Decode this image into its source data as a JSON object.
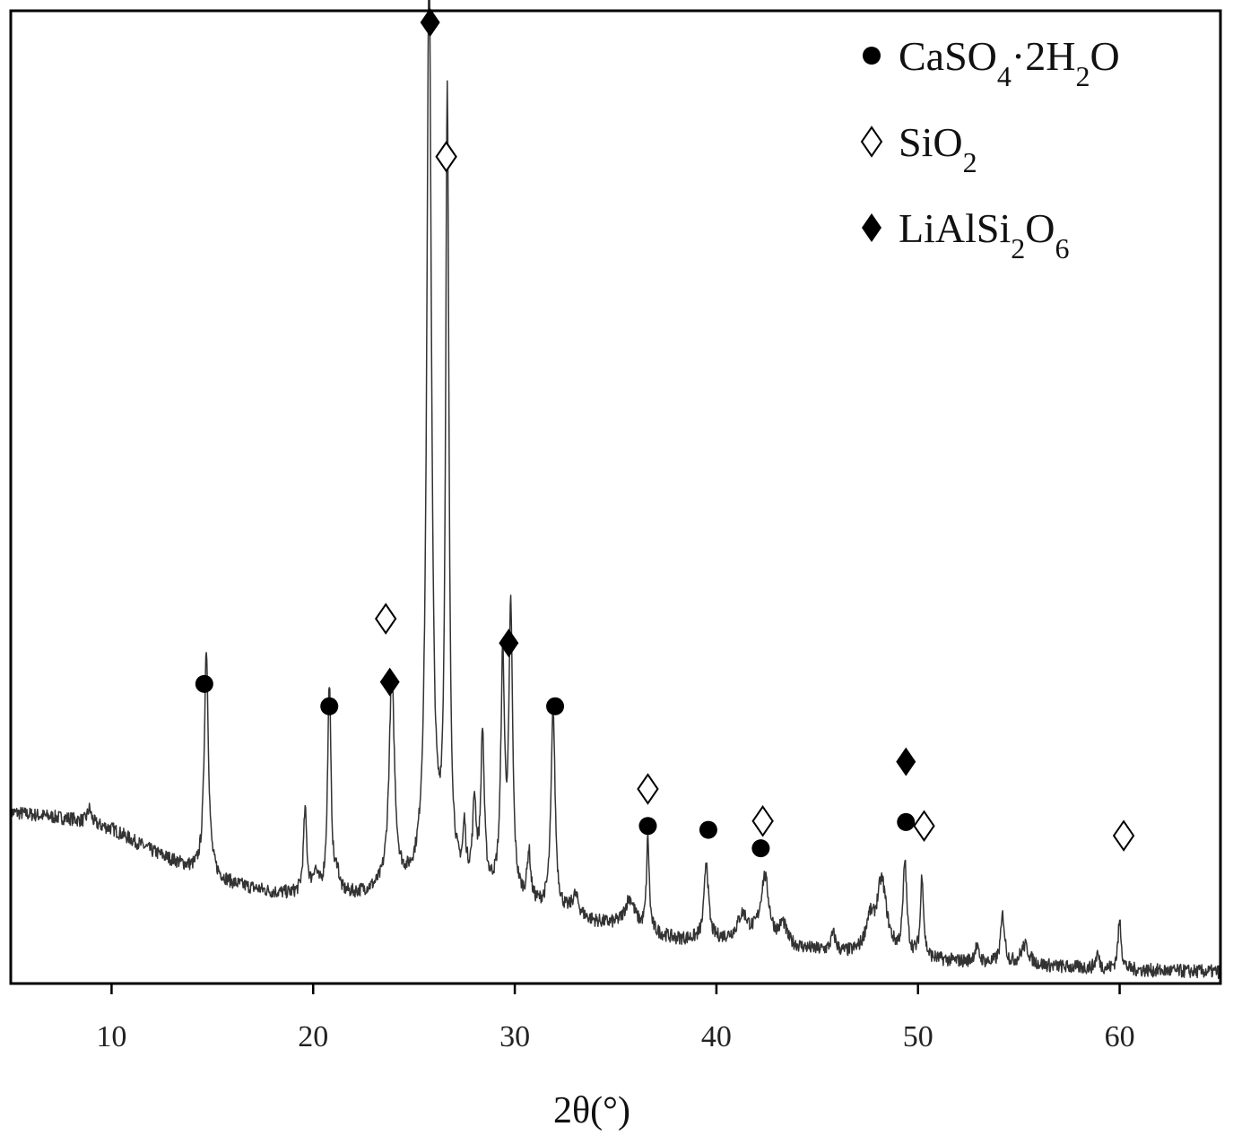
{
  "chart_data": {
    "type": "line",
    "title": "",
    "xlabel": "2θ(°)",
    "ylabel": "",
    "xlim": [
      5,
      65
    ],
    "ylim": [
      0,
      100
    ],
    "x_ticks": [
      10,
      20,
      30,
      40,
      50,
      60
    ],
    "y_ticks_shown": false,
    "grid": false,
    "legend_position": "top-right",
    "legend": [
      {
        "marker": "filled-circle",
        "parts": [
          [
            "CaSO",
            ""
          ],
          [
            "4",
            "sub"
          ],
          [
            "·2H",
            ""
          ],
          [
            "2",
            "sub"
          ],
          [
            "O",
            ""
          ]
        ]
      },
      {
        "marker": "open-diamond",
        "parts": [
          [
            " SiO",
            ""
          ],
          [
            "2",
            "sub"
          ]
        ]
      },
      {
        "marker": "filled-diamond",
        "parts": [
          [
            "LiAlSi",
            ""
          ],
          [
            "2",
            "sub"
          ],
          [
            "O",
            ""
          ],
          [
            "6",
            "sub"
          ]
        ]
      }
    ],
    "series": [
      {
        "baseline": [
          [
            5,
            17.6
          ],
          [
            8,
            16.9
          ],
          [
            10,
            15.9
          ],
          [
            12,
            13.6
          ],
          [
            14,
            11.7
          ],
          [
            16,
            10.2
          ],
          [
            18,
            9.3
          ],
          [
            20,
            8.9
          ],
          [
            22,
            9.0
          ],
          [
            24,
            9.6
          ],
          [
            26,
            9.8
          ],
          [
            28,
            9.8
          ],
          [
            30,
            8.3
          ],
          [
            32,
            7.3
          ],
          [
            34,
            6.2
          ],
          [
            36,
            5.5
          ],
          [
            38,
            4.5
          ],
          [
            40,
            4.4
          ],
          [
            42,
            4.4
          ],
          [
            44,
            3.6
          ],
          [
            46,
            3.0
          ],
          [
            48,
            2.8
          ],
          [
            50,
            2.5
          ],
          [
            52,
            2.2
          ],
          [
            54,
            1.9
          ],
          [
            56,
            1.8
          ],
          [
            58,
            1.6
          ],
          [
            60,
            1.4
          ],
          [
            62,
            1.3
          ],
          [
            65,
            1.2
          ]
        ],
        "peaks": [
          {
            "x": 8.9,
            "height": 1.5,
            "width": 0.12
          },
          {
            "x": 14.7,
            "height": 23.3,
            "width": 0.12
          },
          {
            "x": 19.6,
            "height": 8.5,
            "width": 0.1
          },
          {
            "x": 20.1,
            "height": 2.2,
            "width": 0.15
          },
          {
            "x": 20.8,
            "height": 21.7,
            "width": 0.1
          },
          {
            "x": 21.2,
            "height": 2.0,
            "width": 0.1
          },
          {
            "x": 23.9,
            "height": 21.6,
            "width": 0.16
          },
          {
            "x": 25.75,
            "height": 94.5,
            "width": 0.14
          },
          {
            "x": 26.65,
            "height": 80.0,
            "width": 0.1
          },
          {
            "x": 27.5,
            "height": 5.0,
            "width": 0.08
          },
          {
            "x": 28.0,
            "height": 8.0,
            "width": 0.1
          },
          {
            "x": 28.4,
            "height": 15.5,
            "width": 0.1
          },
          {
            "x": 29.4,
            "height": 23.5,
            "width": 0.11
          },
          {
            "x": 29.8,
            "height": 29.0,
            "width": 0.11
          },
          {
            "x": 30.7,
            "height": 5.0,
            "width": 0.1
          },
          {
            "x": 31.9,
            "height": 20.5,
            "width": 0.12
          },
          {
            "x": 33.0,
            "height": 2.0,
            "width": 0.2
          },
          {
            "x": 35.7,
            "height": 3.0,
            "width": 0.3
          },
          {
            "x": 36.6,
            "height": 9.5,
            "width": 0.08
          },
          {
            "x": 39.5,
            "height": 8.2,
            "width": 0.12
          },
          {
            "x": 41.3,
            "height": 2.5,
            "width": 0.3
          },
          {
            "x": 42.4,
            "height": 6.5,
            "width": 0.25
          },
          {
            "x": 43.3,
            "height": 2.0,
            "width": 0.2
          },
          {
            "x": 45.8,
            "height": 1.8,
            "width": 0.15
          },
          {
            "x": 47.6,
            "height": 3.0,
            "width": 0.25
          },
          {
            "x": 48.2,
            "height": 7.5,
            "width": 0.3
          },
          {
            "x": 49.35,
            "height": 9.5,
            "width": 0.11
          },
          {
            "x": 50.2,
            "height": 8.5,
            "width": 0.09
          },
          {
            "x": 52.9,
            "height": 1.5,
            "width": 0.15
          },
          {
            "x": 54.2,
            "height": 5.0,
            "width": 0.12
          },
          {
            "x": 55.3,
            "height": 2.0,
            "width": 0.25
          },
          {
            "x": 58.9,
            "height": 1.5,
            "width": 0.1
          },
          {
            "x": 60.0,
            "height": 5.0,
            "width": 0.1
          }
        ]
      }
    ],
    "annotations": [
      {
        "marker": "filled-circle",
        "x": 14.6,
        "y": 30.8
      },
      {
        "marker": "filled-circle",
        "x": 20.8,
        "y": 28.5
      },
      {
        "marker": "open-diamond",
        "x": 23.6,
        "y": 37.5
      },
      {
        "marker": "filled-diamond",
        "x": 23.8,
        "y": 31.0
      },
      {
        "marker": "filled-diamond",
        "x": 25.8,
        "y": 98.8
      },
      {
        "marker": "open-diamond",
        "x": 26.6,
        "y": 85.0
      },
      {
        "marker": "filled-diamond",
        "x": 29.7,
        "y": 35.0
      },
      {
        "marker": "filled-circle",
        "x": 32.0,
        "y": 28.5
      },
      {
        "marker": "open-diamond",
        "x": 36.6,
        "y": 20.0
      },
      {
        "marker": "filled-circle",
        "x": 36.6,
        "y": 16.2
      },
      {
        "marker": "filled-circle",
        "x": 39.6,
        "y": 15.8
      },
      {
        "marker": "open-diamond",
        "x": 42.3,
        "y": 16.7
      },
      {
        "marker": "filled-circle",
        "x": 42.2,
        "y": 13.9
      },
      {
        "marker": "filled-diamond",
        "x": 49.4,
        "y": 22.8
      },
      {
        "marker": "filled-circle",
        "x": 49.4,
        "y": 16.6
      },
      {
        "marker": "open-diamond",
        "x": 50.3,
        "y": 16.2
      },
      {
        "marker": "open-diamond",
        "x": 60.2,
        "y": 15.2
      }
    ]
  }
}
